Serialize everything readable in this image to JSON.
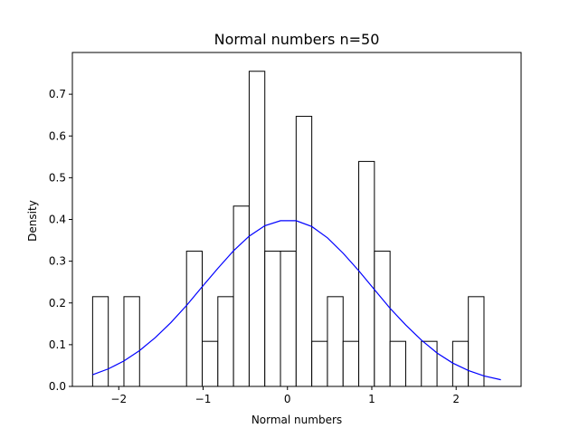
{
  "chart_data": {
    "type": "bar",
    "title": "Normal numbers n=50",
    "xlabel": "Normal numbers",
    "ylabel": "Density",
    "xlim": [
      -2.55,
      2.77
    ],
    "ylim": [
      0.0,
      0.8
    ],
    "xticks": [
      -2,
      -1,
      0,
      1,
      2
    ],
    "xtick_labels": [
      "−2",
      "−1",
      "0",
      "1",
      "2"
    ],
    "yticks": [
      0.0,
      0.1,
      0.2,
      0.3,
      0.4,
      0.5,
      0.6,
      0.7
    ],
    "ytick_labels": [
      "0.0",
      "0.1",
      "0.2",
      "0.3",
      "0.4",
      "0.5",
      "0.6",
      "0.7"
    ],
    "grid": false,
    "histogram": {
      "bin_start": -2.31,
      "bin_width": 0.1856,
      "densities": [
        0.215,
        0,
        0.215,
        0,
        0,
        0,
        0.324,
        0.108,
        0.215,
        0.432,
        0.755,
        0.324,
        0.324,
        0.647,
        0.108,
        0.215,
        0.108,
        0.539,
        0.324,
        0.108,
        0,
        0.108,
        0,
        0.108,
        0.215
      ],
      "bar_fill": "#ffffff",
      "bar_edge": "#000000"
    },
    "series": [
      {
        "type": "line",
        "color": "#0000ff",
        "x": [
          -2.31,
          -2.124,
          -1.939,
          -1.753,
          -1.567,
          -1.382,
          -1.196,
          -1.01,
          -0.825,
          -0.639,
          -0.454,
          -0.268,
          -0.082,
          0.103,
          0.289,
          0.474,
          0.66,
          0.846,
          1.031,
          1.217,
          1.403,
          1.588,
          1.774,
          1.959,
          2.145,
          2.331,
          2.53
        ],
        "y": [
          0.028,
          0.042,
          0.061,
          0.086,
          0.117,
          0.153,
          0.194,
          0.239,
          0.283,
          0.325,
          0.36,
          0.385,
          0.397,
          0.397,
          0.383,
          0.356,
          0.319,
          0.277,
          0.232,
          0.187,
          0.147,
          0.111,
          0.08,
          0.056,
          0.038,
          0.025,
          0.016
        ]
      }
    ]
  }
}
